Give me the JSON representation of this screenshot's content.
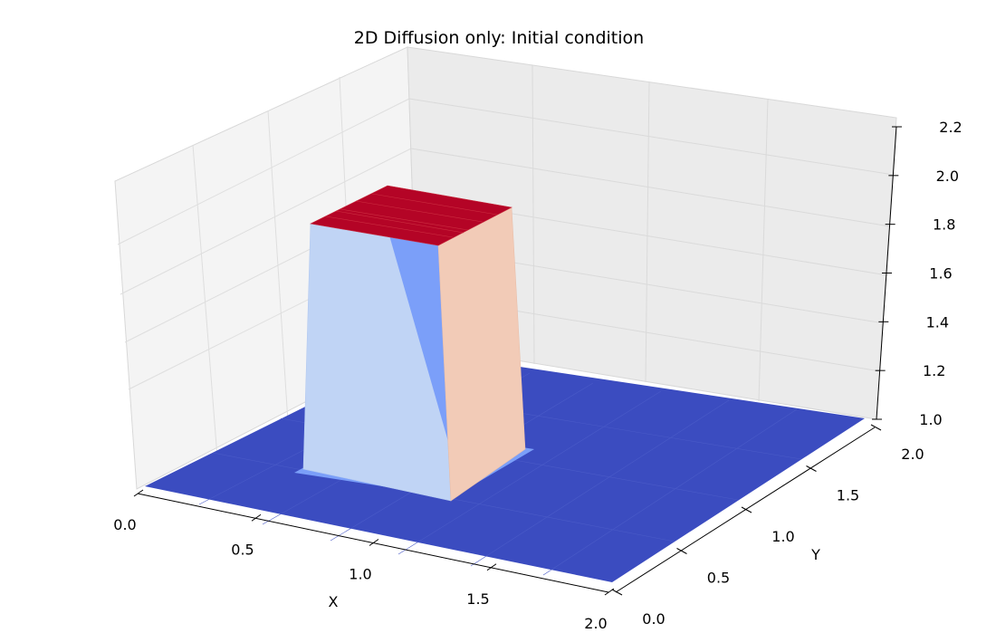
{
  "chart_data": {
    "type": "surface3d",
    "title": "2D Diffusion only: Initial condition",
    "xlabel": "X",
    "ylabel": "Y",
    "zlabel": "",
    "xlim": [
      0.0,
      2.0
    ],
    "ylim": [
      0.0,
      2.0
    ],
    "zlim": [
      1.0,
      2.2
    ],
    "x_ticks": [
      "0.0",
      "0.5",
      "1.0",
      "1.5",
      "2.0"
    ],
    "y_ticks": [
      "0.0",
      "0.5",
      "1.0",
      "1.5",
      "2.0"
    ],
    "z_ticks": [
      "1.0",
      "1.2",
      "1.4",
      "1.6",
      "1.8",
      "2.0",
      "2.2"
    ],
    "grid": true,
    "colormap": "coolwarm",
    "initial_condition": {
      "base_value": 1.0,
      "plateau_value": 2.0,
      "plateau_x_range": [
        0.5,
        1.0
      ],
      "plateau_y_range": [
        0.5,
        1.0
      ]
    },
    "colors": {
      "low": "#3b4cc0",
      "top": "#b40426",
      "side_light": "#c0d4f5",
      "side_mid": "#7b9ff9",
      "side_warm": "#f2cbb7"
    }
  }
}
